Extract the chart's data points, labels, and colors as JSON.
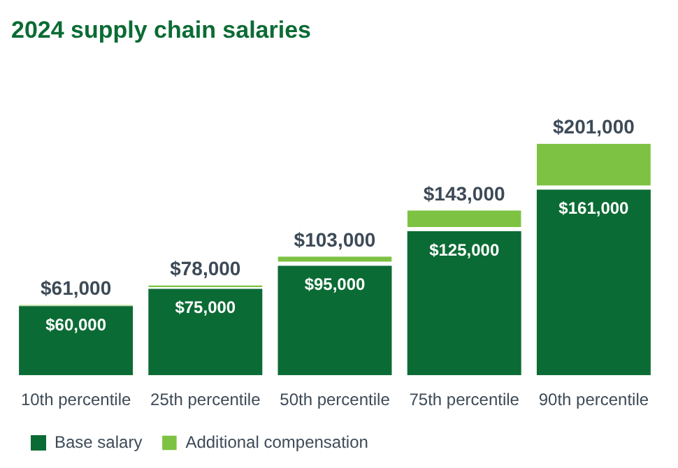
{
  "chart_data": {
    "type": "bar",
    "title": "2024 supply chain salaries",
    "stacked": true,
    "legend": "bottom left",
    "categories": [
      "10th percentile",
      "25th percentile",
      "50th percentile",
      "75th percentile",
      "90th percentile"
    ],
    "series": [
      {
        "name": "Base salary",
        "color": "#0b6b34",
        "values": [
          60000,
          75000,
          95000,
          125000,
          161000
        ],
        "value_labels": [
          "$60,000",
          "$75,000",
          "$95,000",
          "$125,000",
          "$161,000"
        ]
      },
      {
        "name": "Additional compensation",
        "color": "#7dc242",
        "values": [
          1000,
          3000,
          8000,
          18000,
          40000
        ]
      }
    ],
    "totals": [
      "$61,000",
      "$78,000",
      "$103,000",
      "$143,000",
      "$201,000"
    ]
  }
}
